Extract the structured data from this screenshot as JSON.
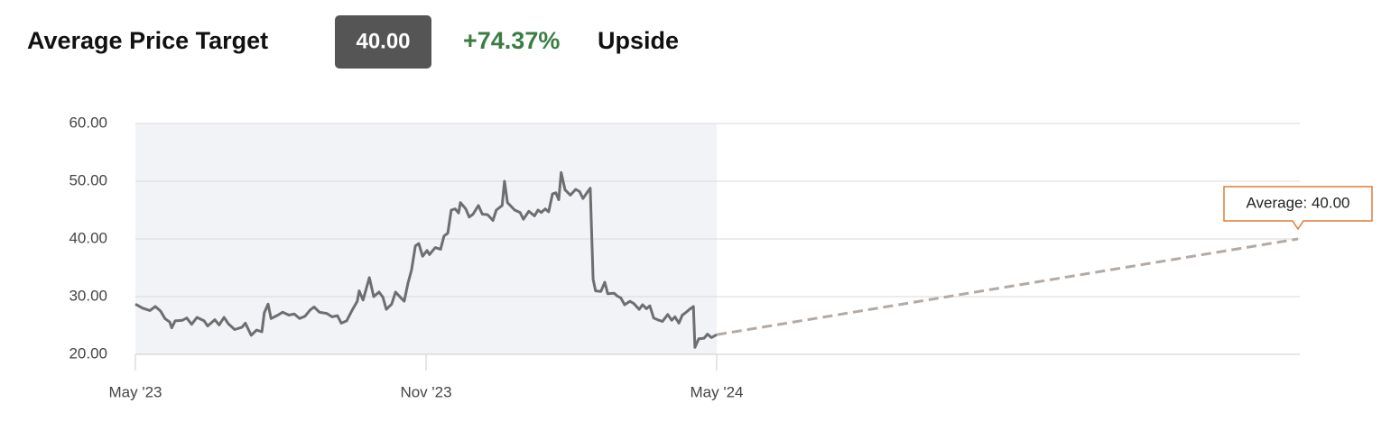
{
  "header": {
    "title": "Average Price Target",
    "badge": "40.00",
    "change": "+74.37%",
    "change_suffix": "Upside"
  },
  "chart_data": {
    "type": "line",
    "annotation": "Average: 40.00",
    "xlim": [
      0,
      24
    ],
    "xticks": [
      {
        "value": 0,
        "label": "May '23"
      },
      {
        "value": 6,
        "label": "Nov '23"
      },
      {
        "value": 12,
        "label": "May '24"
      }
    ],
    "ylim": [
      20,
      60
    ],
    "yticks": [
      {
        "value": 20,
        "label": "20.00"
      },
      {
        "value": 30,
        "label": "30.00"
      },
      {
        "value": 40,
        "label": "40.00"
      },
      {
        "value": 50,
        "label": "50.00"
      },
      {
        "value": 60,
        "label": "60.00"
      }
    ],
    "grid": true,
    "series": [
      {
        "color": "#6e6e6e",
        "dashed": false,
        "x": [
          0,
          0.15,
          0.3,
          0.41,
          0.52,
          0.61,
          0.71,
          0.75,
          0.82,
          0.97,
          1.06,
          1.16,
          1.27,
          1.42,
          1.49,
          1.64,
          1.73,
          1.83,
          1.92,
          2.05,
          2.2,
          2.27,
          2.39,
          2.5,
          2.61,
          2.66,
          2.74,
          2.8,
          2.94,
          3.04,
          3.17,
          3.28,
          3.39,
          3.5,
          3.61,
          3.69,
          3.8,
          3.95,
          4.06,
          4.17,
          4.25,
          4.36,
          4.47,
          4.58,
          4.62,
          4.7,
          4.83,
          4.92,
          5.03,
          5.11,
          5.18,
          5.29,
          5.37,
          5.48,
          5.55,
          5.63,
          5.7,
          5.78,
          5.85,
          5.93,
          6.02,
          6.07,
          6.19,
          6.3,
          6.37,
          6.45,
          6.52,
          6.6,
          6.67,
          6.71,
          6.82,
          6.89,
          6.97,
          7.08,
          7.16,
          7.27,
          7.38,
          7.45,
          7.57,
          7.62,
          7.68,
          7.83,
          7.94,
          8.01,
          8.12,
          8.24,
          8.31,
          8.38,
          8.46,
          8.53,
          8.61,
          8.68,
          8.74,
          8.79,
          8.87,
          8.98,
          9.09,
          9.17,
          9.24,
          9.32,
          9.39,
          9.45,
          9.5,
          9.61,
          9.69,
          9.75,
          9.88,
          9.95,
          10.02,
          10.1,
          10.21,
          10.29,
          10.4,
          10.47,
          10.55,
          10.62,
          10.7,
          10.81,
          10.88,
          10.99,
          11.07,
          11.14,
          11.22,
          11.29,
          11.37,
          11.44,
          11.52,
          11.55,
          11.63,
          11.74,
          11.81,
          11.89,
          12
        ],
        "values": [
          28.7,
          28,
          27.6,
          28.3,
          27.5,
          26.2,
          25.6,
          24.6,
          25.8,
          25.9,
          26.3,
          25.2,
          26.4,
          25.8,
          24.9,
          26,
          25.1,
          26.4,
          25.3,
          24.3,
          24.7,
          25.4,
          23.3,
          24.2,
          23.9,
          27.2,
          28.7,
          26.2,
          26.8,
          27.3,
          26.8,
          27,
          26.2,
          26.6,
          27.7,
          28.2,
          27.3,
          27.1,
          26.5,
          26.7,
          25.4,
          25.8,
          27.6,
          29.2,
          31,
          29.4,
          33.3,
          30,
          30.8,
          29.9,
          27.8,
          28.7,
          30.8,
          29.8,
          29.2,
          32.4,
          34.6,
          38.8,
          39.2,
          37,
          38,
          37.3,
          38.5,
          38.2,
          40.5,
          41,
          45,
          45.2,
          44.5,
          46.3,
          45.2,
          43.8,
          44.3,
          45.8,
          44.3,
          44.2,
          43.2,
          45,
          45.8,
          50,
          46.3,
          45,
          44.6,
          43.4,
          44.8,
          44,
          45,
          44.6,
          45.2,
          44.7,
          47.8,
          48,
          46.8,
          51.5,
          48.5,
          47.6,
          48.6,
          48.2,
          47,
          48,
          48.8,
          33,
          31,
          30.9,
          32.5,
          30.5,
          30.6,
          30.1,
          29.8,
          28.6,
          29.2,
          28.8,
          27.8,
          28.6,
          27.9,
          28.4,
          26.3,
          25.9,
          25.7,
          26.9,
          25.9,
          26.5,
          25.4,
          26.8,
          27.3,
          27.8,
          28.3,
          21.2,
          22.7,
          22.8,
          23.5,
          22.9,
          23.4
        ]
      },
      {
        "color": "#b3aaa4",
        "dashed": true,
        "x": [
          12,
          24
        ],
        "values": [
          23.4,
          40
        ]
      }
    ]
  }
}
